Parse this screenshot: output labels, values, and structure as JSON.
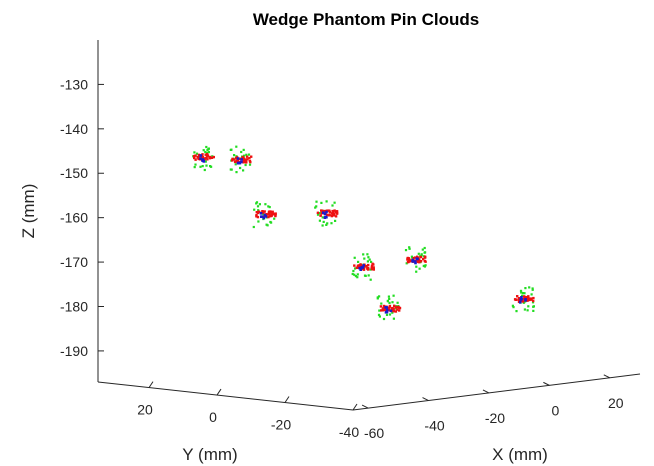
{
  "chart_data": {
    "type": "scatter",
    "title": "Wedge Phantom Pin Clouds",
    "xlabel": "X (mm)",
    "ylabel": "Y (mm)",
    "zlabel": "Z (mm)",
    "z_ticks": [
      "-130",
      "-140",
      "-150",
      "-160",
      "-170",
      "-180",
      "-190"
    ],
    "y_ticks": [
      "20",
      "0",
      "-20",
      "-40"
    ],
    "x_ticks": [
      "-60",
      "-40",
      "-20",
      "0",
      "20"
    ],
    "zlim": [
      -197,
      -120
    ],
    "grid": false,
    "series_colors": {
      "green": "#22dd22",
      "red": "#ee1111",
      "blue": "#1a1acc"
    },
    "pins": [
      {
        "y": 0,
        "x": -70,
        "z": -143
      },
      {
        "y": -20,
        "x": -80,
        "z": -141
      },
      {
        "y": -20,
        "x": -72,
        "z": -154
      },
      {
        "y": -40,
        "x": -74,
        "z": -152
      },
      {
        "y": -40,
        "x": -62,
        "z": -165
      },
      {
        "y": -45,
        "x": -50,
        "z": -164
      },
      {
        "y": -30,
        "x": -42,
        "z": -177
      },
      {
        "y": -50,
        "x": -20,
        "z": -175
      }
    ]
  }
}
